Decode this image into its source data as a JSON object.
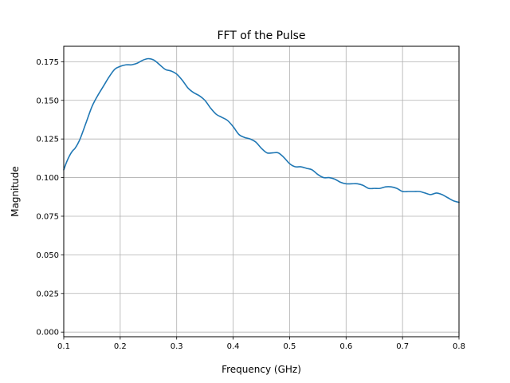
{
  "chart_data": {
    "type": "line",
    "title": "FFT of the Pulse",
    "xlabel": "Frequency (GHz)",
    "ylabel": "Magnitude",
    "xlim": [
      0.1,
      0.8
    ],
    "ylim": [
      -0.003,
      0.185
    ],
    "xticks": [
      0.1,
      0.2,
      0.3,
      0.4,
      0.5,
      0.6,
      0.7,
      0.8
    ],
    "xtick_labels": [
      "0.1",
      "0.2",
      "0.3",
      "0.4",
      "0.5",
      "0.6",
      "0.7",
      "0.8"
    ],
    "yticks": [
      0.0,
      0.025,
      0.05,
      0.075,
      0.1,
      0.125,
      0.15,
      0.175
    ],
    "ytick_labels": [
      "0.000",
      "0.025",
      "0.050",
      "0.075",
      "0.100",
      "0.125",
      "0.150",
      "0.175"
    ],
    "grid": true,
    "line_color": "#1f77b4",
    "series": [
      {
        "x": [
          0.1,
          0.105,
          0.11,
          0.115,
          0.12,
          0.125,
          0.13,
          0.14,
          0.15,
          0.16,
          0.17,
          0.18,
          0.19,
          0.2,
          0.21,
          0.22,
          0.23,
          0.24,
          0.25,
          0.26,
          0.27,
          0.28,
          0.29,
          0.3,
          0.31,
          0.32,
          0.33,
          0.34,
          0.35,
          0.36,
          0.37,
          0.38,
          0.39,
          0.4,
          0.41,
          0.42,
          0.43,
          0.44,
          0.45,
          0.46,
          0.47,
          0.48,
          0.49,
          0.5,
          0.51,
          0.52,
          0.53,
          0.54,
          0.55,
          0.56,
          0.57,
          0.58,
          0.59,
          0.6,
          0.61,
          0.62,
          0.63,
          0.64,
          0.65,
          0.66,
          0.67,
          0.68,
          0.69,
          0.7,
          0.71,
          0.72,
          0.73,
          0.74,
          0.75,
          0.76,
          0.77,
          0.78,
          0.79,
          0.8
        ],
        "y": [
          0.105,
          0.11,
          0.114,
          0.117,
          0.119,
          0.122,
          0.126,
          0.136,
          0.146,
          0.153,
          0.159,
          0.165,
          0.17,
          0.172,
          0.173,
          0.173,
          0.174,
          0.176,
          0.177,
          0.176,
          0.173,
          0.17,
          0.169,
          0.167,
          0.163,
          0.158,
          0.155,
          0.153,
          0.15,
          0.145,
          0.141,
          0.139,
          0.137,
          0.133,
          0.128,
          0.126,
          0.125,
          0.123,
          0.119,
          0.116,
          0.116,
          0.116,
          0.113,
          0.109,
          0.107,
          0.107,
          0.106,
          0.105,
          0.102,
          0.1,
          0.1,
          0.099,
          0.097,
          0.096,
          0.096,
          0.096,
          0.095,
          0.093,
          0.093,
          0.093,
          0.094,
          0.094,
          0.093,
          0.091,
          0.091,
          0.091,
          0.091,
          0.09,
          0.089,
          0.09,
          0.089,
          0.087,
          0.085,
          0.084
        ]
      }
    ]
  }
}
